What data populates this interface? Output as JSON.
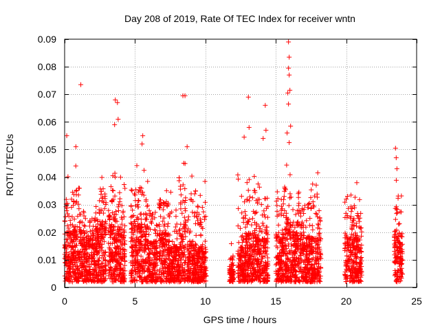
{
  "chart_data": {
    "type": "scatter",
    "title": "Day 208 of 2019, Rate Of TEC Index for receiver wntn",
    "xlabel": "GPS time / hours",
    "ylabel": "ROTI / TECUs",
    "xlim": [
      0,
      25
    ],
    "ylim": [
      0,
      0.09
    ],
    "xticks": [
      "0",
      "5",
      "10",
      "15",
      "20",
      "25"
    ],
    "yticks": [
      "0",
      "0.01",
      "0.02",
      "0.03",
      "0.04",
      "0.05",
      "0.06",
      "0.07",
      "0.08",
      "0.09"
    ],
    "grid": true,
    "marker": "+",
    "color": "#ff0000",
    "clusters": [
      {
        "x": [
          0.0,
          0.55
        ],
        "typical_max": 0.02,
        "peak": 0.041
      },
      {
        "x": [
          0.55,
          1.2
        ],
        "typical_max": 0.022,
        "peak": 0.045
      },
      {
        "x": [
          1.2,
          1.8
        ],
        "typical_max": 0.018,
        "peak": 0.035
      },
      {
        "x": [
          1.8,
          2.4
        ],
        "typical_max": 0.02,
        "peak": 0.03
      },
      {
        "x": [
          2.4,
          2.95
        ],
        "typical_max": 0.024,
        "peak": 0.044
      },
      {
        "x": [
          3.1,
          3.65
        ],
        "typical_max": 0.027,
        "peak": 0.05
      },
      {
        "x": [
          3.65,
          4.3
        ],
        "typical_max": 0.022,
        "peak": 0.042
      },
      {
        "x": [
          4.7,
          5.25
        ],
        "typical_max": 0.024,
        "peak": 0.045
      },
      {
        "x": [
          5.25,
          5.9
        ],
        "typical_max": 0.023,
        "peak": 0.044
      },
      {
        "x": [
          5.9,
          6.6
        ],
        "typical_max": 0.017,
        "peak": 0.035
      },
      {
        "x": [
          6.7,
          7.4
        ],
        "typical_max": 0.02,
        "peak": 0.04
      },
      {
        "x": [
          7.4,
          8.1
        ],
        "typical_max": 0.015,
        "peak": 0.038
      },
      {
        "x": [
          8.1,
          8.6
        ],
        "typical_max": 0.023,
        "peak": 0.05
      },
      {
        "x": [
          8.7,
          9.35
        ],
        "typical_max": 0.017,
        "peak": 0.045
      },
      {
        "x": [
          9.35,
          10.05
        ],
        "typical_max": 0.015,
        "peak": 0.04
      },
      {
        "x": [
          11.7,
          12.0
        ],
        "typical_max": 0.007,
        "peak": 0.017
      },
      {
        "x": [
          12.3,
          12.85
        ],
        "typical_max": 0.015,
        "peak": 0.042
      },
      {
        "x": [
          12.85,
          13.6
        ],
        "typical_max": 0.02,
        "peak": 0.045
      },
      {
        "x": [
          13.6,
          14.45
        ],
        "typical_max": 0.018,
        "peak": 0.042
      },
      {
        "x": [
          15.0,
          15.6
        ],
        "typical_max": 0.021,
        "peak": 0.04
      },
      {
        "x": [
          15.6,
          16.1
        ],
        "typical_max": 0.026,
        "peak": 0.045
      },
      {
        "x": [
          16.1,
          16.6
        ],
        "typical_max": 0.02,
        "peak": 0.035
      },
      {
        "x": [
          16.6,
          17.4
        ],
        "typical_max": 0.019,
        "peak": 0.038
      },
      {
        "x": [
          17.4,
          18.2
        ],
        "typical_max": 0.018,
        "peak": 0.042
      },
      {
        "x": [
          19.9,
          20.8
        ],
        "typical_max": 0.02,
        "peak": 0.04
      },
      {
        "x": [
          20.8,
          21.1
        ],
        "typical_max": 0.016,
        "peak": 0.034
      },
      {
        "x": [
          23.4,
          24.0
        ],
        "typical_max": 0.02,
        "peak": 0.042
      }
    ],
    "outliers": [
      {
        "x": 1.15,
        "y": 0.0735
      },
      {
        "x": 3.6,
        "y": 0.068
      },
      {
        "x": 3.75,
        "y": 0.067
      },
      {
        "x": 3.8,
        "y": 0.061
      },
      {
        "x": 3.55,
        "y": 0.059
      },
      {
        "x": 0.15,
        "y": 0.055
      },
      {
        "x": 0.8,
        "y": 0.051
      },
      {
        "x": 5.55,
        "y": 0.055
      },
      {
        "x": 5.5,
        "y": 0.052
      },
      {
        "x": 8.4,
        "y": 0.0695
      },
      {
        "x": 8.55,
        "y": 0.0695
      },
      {
        "x": 8.7,
        "y": 0.051
      },
      {
        "x": 13.05,
        "y": 0.069
      },
      {
        "x": 13.1,
        "y": 0.058
      },
      {
        "x": 12.75,
        "y": 0.0545
      },
      {
        "x": 14.25,
        "y": 0.066
      },
      {
        "x": 14.3,
        "y": 0.057
      },
      {
        "x": 14.1,
        "y": 0.054
      },
      {
        "x": 15.9,
        "y": 0.089
      },
      {
        "x": 15.95,
        "y": 0.0835
      },
      {
        "x": 15.9,
        "y": 0.0795
      },
      {
        "x": 15.95,
        "y": 0.077
      },
      {
        "x": 16.0,
        "y": 0.0715
      },
      {
        "x": 15.85,
        "y": 0.0705
      },
      {
        "x": 15.9,
        "y": 0.0665
      },
      {
        "x": 16.05,
        "y": 0.0585
      },
      {
        "x": 15.8,
        "y": 0.056
      },
      {
        "x": 15.95,
        "y": 0.0525
      },
      {
        "x": 23.5,
        "y": 0.0505
      },
      {
        "x": 23.55,
        "y": 0.047
      },
      {
        "x": 23.6,
        "y": 0.043
      }
    ]
  }
}
